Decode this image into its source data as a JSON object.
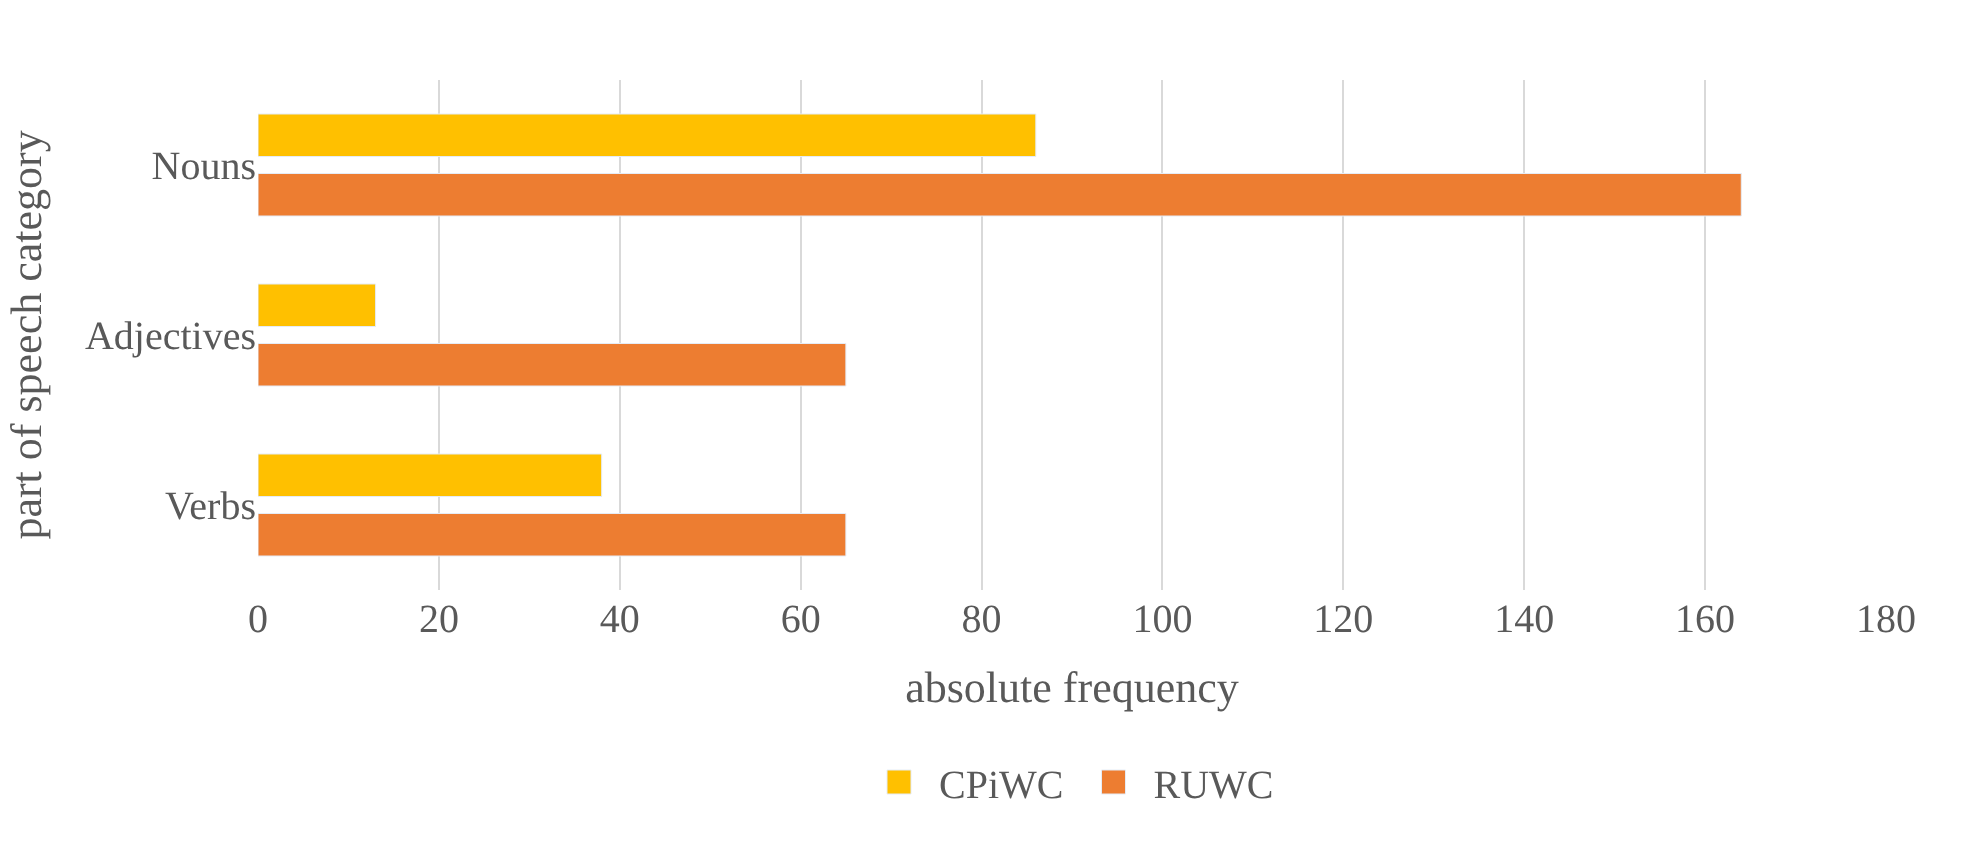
{
  "chart_data": {
    "type": "bar",
    "orientation": "horizontal",
    "xlabel": "absolute frequency",
    "ylabel": "part of speech category",
    "categories": [
      "Nouns",
      "Adjectives",
      "Verbs"
    ],
    "series": [
      {
        "name": "CPiWC",
        "color": "#ffc000",
        "values": [
          86,
          13,
          38
        ]
      },
      {
        "name": "RUWC",
        "color": "#ed7d31",
        "values": [
          164,
          65,
          65
        ]
      }
    ],
    "xlim": [
      0,
      180
    ],
    "xticks": [
      0,
      20,
      40,
      60,
      80,
      100,
      120,
      140,
      160,
      180
    ],
    "grid": "x",
    "legend": "bottom"
  }
}
